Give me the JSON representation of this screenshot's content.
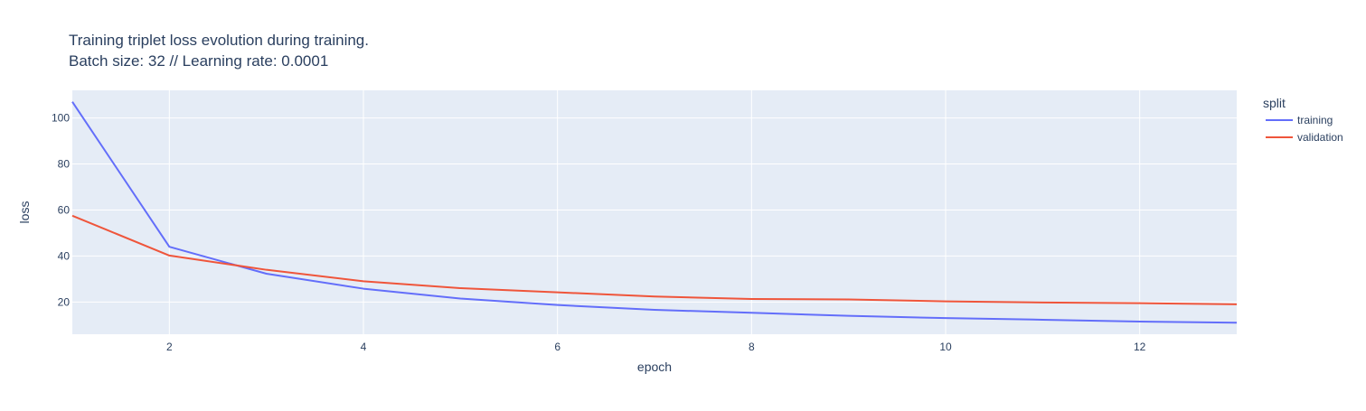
{
  "chart_data": {
    "type": "line",
    "title": "Training triplet loss evolution during training.",
    "subtitle": "Batch size: 32 // Learning rate: 0.0001",
    "xlabel": "epoch",
    "ylabel": "loss",
    "xlim": [
      1,
      13
    ],
    "ylim": [
      6,
      112
    ],
    "xticks": [
      2,
      4,
      6,
      8,
      10,
      12
    ],
    "yticks": [
      20,
      40,
      60,
      80,
      100
    ],
    "grid": true,
    "legend": {
      "title": "split",
      "placement": "right"
    },
    "x": [
      1,
      2,
      3,
      4,
      5,
      6,
      7,
      8,
      9,
      10,
      11,
      12,
      13
    ],
    "series": [
      {
        "name": "training",
        "color": "#636efa",
        "values": [
          107,
          44,
          32.3,
          25.8,
          21.5,
          18.7,
          16.6,
          15.3,
          14,
          13,
          12.3,
          11.5,
          11
        ]
      },
      {
        "name": "validation",
        "color": "#ef553b",
        "values": [
          57.5,
          40.2,
          34,
          29,
          26,
          24.2,
          22.4,
          21.3,
          21.1,
          20.3,
          19.8,
          19.5,
          19
        ]
      }
    ],
    "colors": {
      "plot_background": "#e5ecf6",
      "grid": "#ffffff",
      "text": "#2a3f5f"
    }
  }
}
